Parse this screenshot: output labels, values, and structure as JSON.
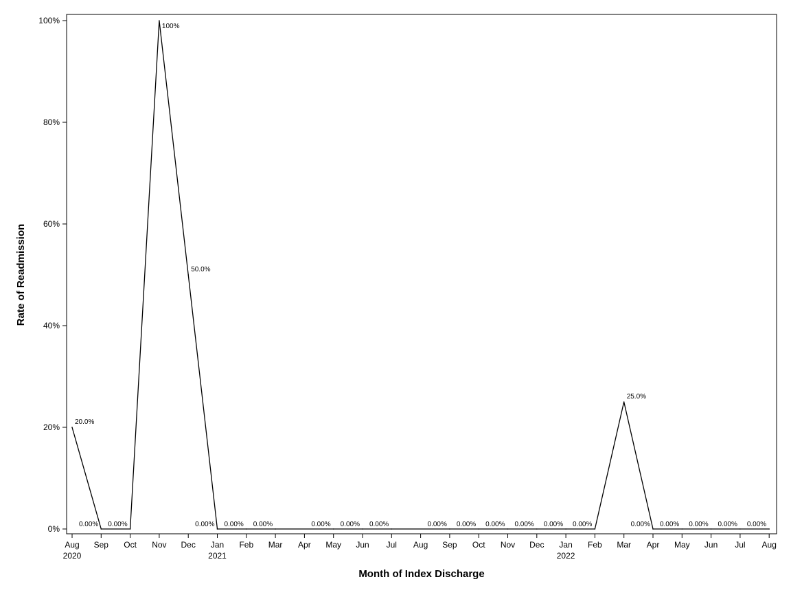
{
  "chart_data": {
    "type": "line",
    "title": "",
    "xlabel": "Month of Index Discharge",
    "ylabel": "Rate of Readmission",
    "ylim": [
      0,
      100
    ],
    "y_ticks": [
      "0%",
      "20%",
      "40%",
      "60%",
      "80%",
      "100%"
    ],
    "y_tick_values": [
      0,
      20,
      40,
      60,
      80,
      100
    ],
    "x_tick_labels": [
      "Aug",
      "Sep",
      "Oct",
      "Nov",
      "Dec",
      "Jan",
      "Feb",
      "Mar",
      "Apr",
      "May",
      "Jun",
      "Jul",
      "Aug",
      "Sep",
      "Oct",
      "Nov",
      "Dec",
      "Jan",
      "Feb",
      "Mar",
      "Apr",
      "May",
      "Jun",
      "Jul",
      "Aug"
    ],
    "x_tick_years": [
      "2020",
      "",
      "",
      "",
      "",
      "2021",
      "",
      "",
      "",
      "",
      "",
      "",
      "",
      "",
      "",
      "",
      "",
      "2022",
      "",
      "",
      "",
      "",
      "",
      "",
      ""
    ],
    "grid": false,
    "legend": "none",
    "line_color": "#000000",
    "series": [
      {
        "points": [
          {
            "x": "2020-08",
            "y": 20,
            "label": "20.0%"
          },
          {
            "x": "2020-09",
            "y": 0,
            "label": "0.00%"
          },
          {
            "x": "2020-10",
            "y": 0,
            "label": "0.00%"
          },
          {
            "x": "2020-11",
            "y": 100,
            "label": "100%"
          },
          {
            "x": "2020-12",
            "y": 50,
            "label": "50.0%"
          },
          {
            "x": "2021-01",
            "y": 0,
            "label": "0.00%"
          },
          {
            "x": "2021-02",
            "y": 0,
            "label": "0.00%"
          },
          {
            "x": "2021-03",
            "y": 0,
            "label": "0.00%"
          },
          {
            "x": "2021-05",
            "y": 0,
            "label": "0.00%"
          },
          {
            "x": "2021-06",
            "y": 0,
            "label": "0.00%"
          },
          {
            "x": "2021-07",
            "y": 0,
            "label": "0.00%"
          },
          {
            "x": "2021-09",
            "y": 0,
            "label": "0.00%"
          },
          {
            "x": "2021-10",
            "y": 0,
            "label": "0.00%"
          },
          {
            "x": "2021-11",
            "y": 0,
            "label": "0.00%"
          },
          {
            "x": "2021-12",
            "y": 0,
            "label": "0.00%"
          },
          {
            "x": "2022-01",
            "y": 0,
            "label": "0.00%"
          },
          {
            "x": "2022-02",
            "y": 0,
            "label": "0.00%"
          },
          {
            "x": "2022-03",
            "y": 25,
            "label": "25.0%"
          },
          {
            "x": "2022-04",
            "y": 0,
            "label": "0.00%"
          },
          {
            "x": "2022-05",
            "y": 0,
            "label": "0.00%"
          },
          {
            "x": "2022-06",
            "y": 0,
            "label": "0.00%"
          },
          {
            "x": "2022-07",
            "y": 0,
            "label": "0.00%"
          },
          {
            "x": "2022-08",
            "y": 0,
            "label": "0.00%"
          }
        ]
      }
    ]
  }
}
